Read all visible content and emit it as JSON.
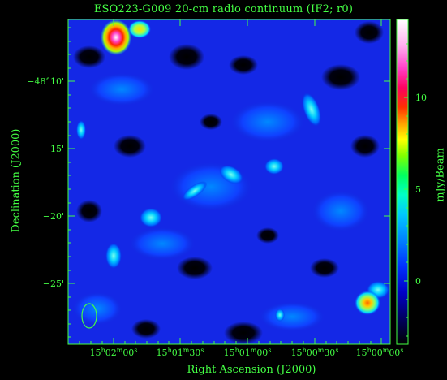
{
  "figure": {
    "title": "ESO223-G009  20-cm radio continuum (IF2; r0)",
    "xlabel": "Right Ascension (J2000)",
    "ylabel": "Declination (J2000)",
    "colorbar_label": "mJy/Beam",
    "ra_ticks": [
      {
        "h": "15",
        "m": "02",
        "s": "00",
        "sfx": "s"
      },
      {
        "h": "15",
        "m": "01",
        "s": "30",
        "sfx": "s"
      },
      {
        "h": "15",
        "m": "01",
        "s": "00",
        "sfx": "s"
      },
      {
        "h": "15",
        "m": "00",
        "s": "30",
        "sfx": "s"
      },
      {
        "h": "15",
        "m": "00",
        "s": "00",
        "sfx": "s"
      }
    ],
    "dec_ticks": [
      "−48°10'",
      "−15'",
      "−20'",
      "−25'"
    ],
    "colorbar_ticks": [
      "10",
      "5",
      "0"
    ],
    "colors": {
      "axis": "#44ff44",
      "beam": "#44ff44"
    },
    "sources": [
      {
        "name": "bright-source-top-left",
        "peak": "high"
      },
      {
        "name": "source-bottom-right",
        "peak": "medium"
      }
    ]
  }
}
